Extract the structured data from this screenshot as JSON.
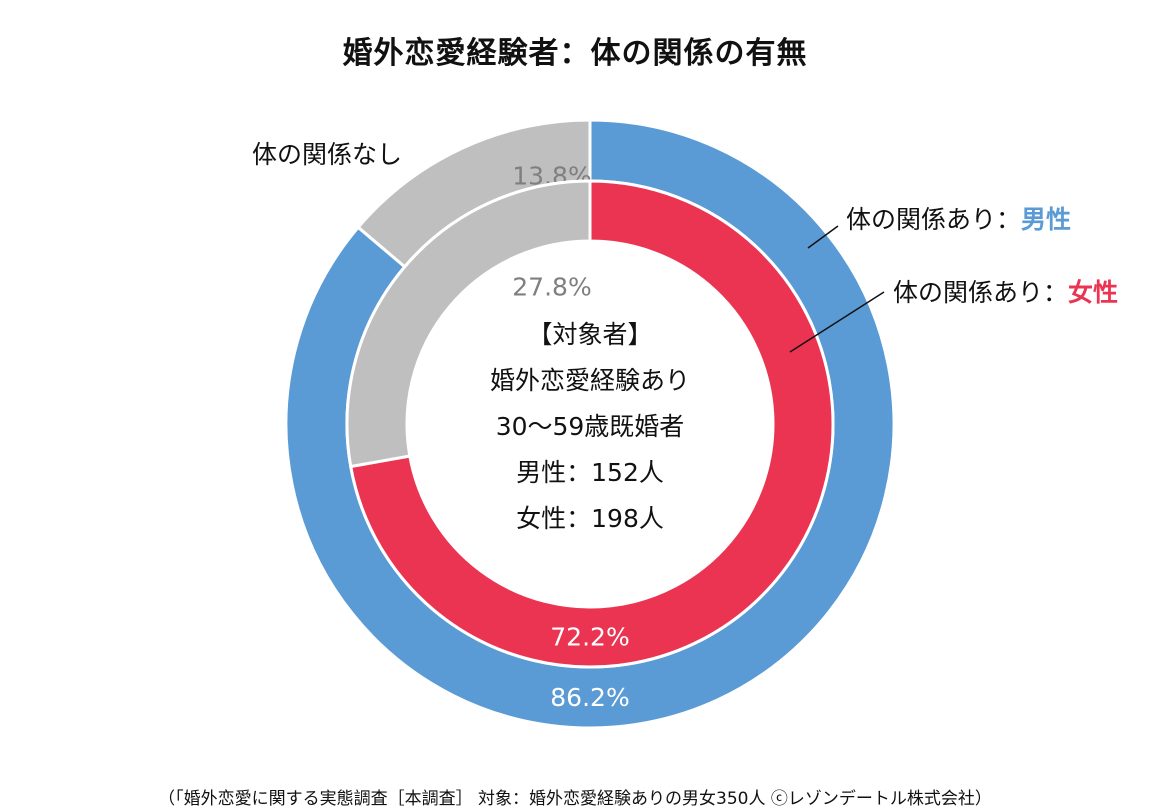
{
  "title": "婚外恋愛経験者：体の関係の有無",
  "center": {
    "line1": "【対象者】",
    "line2": "婚外恋愛経験あり",
    "line3": "30～59歳既婚者",
    "line4": "男性：152人",
    "line5": "女性：198人"
  },
  "labels": {
    "none": "体の関係なし",
    "yes_male_prefix": "体の関係あり：",
    "yes_male_sex": "男性",
    "yes_female_prefix": "体の関係あり：",
    "yes_female_sex": "女性"
  },
  "colors": {
    "male": "#5b9bd5",
    "female": "#ea3452",
    "none": "#bfbfbf"
  },
  "footer": "（「婚外恋愛に関する実態調査［本調査］ 対象：婚外恋愛経験ありの男女350人 ⓒレゾンデートル株式会社）",
  "chart_data": {
    "type": "pie",
    "subtype": "doughnut",
    "title": "婚外恋愛経験者：体の関係の有無",
    "categories": [
      "体の関係あり",
      "体の関係なし"
    ],
    "series": [
      {
        "name": "男性",
        "ring": "outer",
        "values": [
          86.2,
          13.8
        ],
        "value_labels": [
          "86.2%",
          "13.8%"
        ]
      },
      {
        "name": "女性",
        "ring": "inner",
        "values": [
          72.2,
          27.8
        ],
        "value_labels": [
          "72.2%",
          "27.8%"
        ]
      }
    ]
  }
}
